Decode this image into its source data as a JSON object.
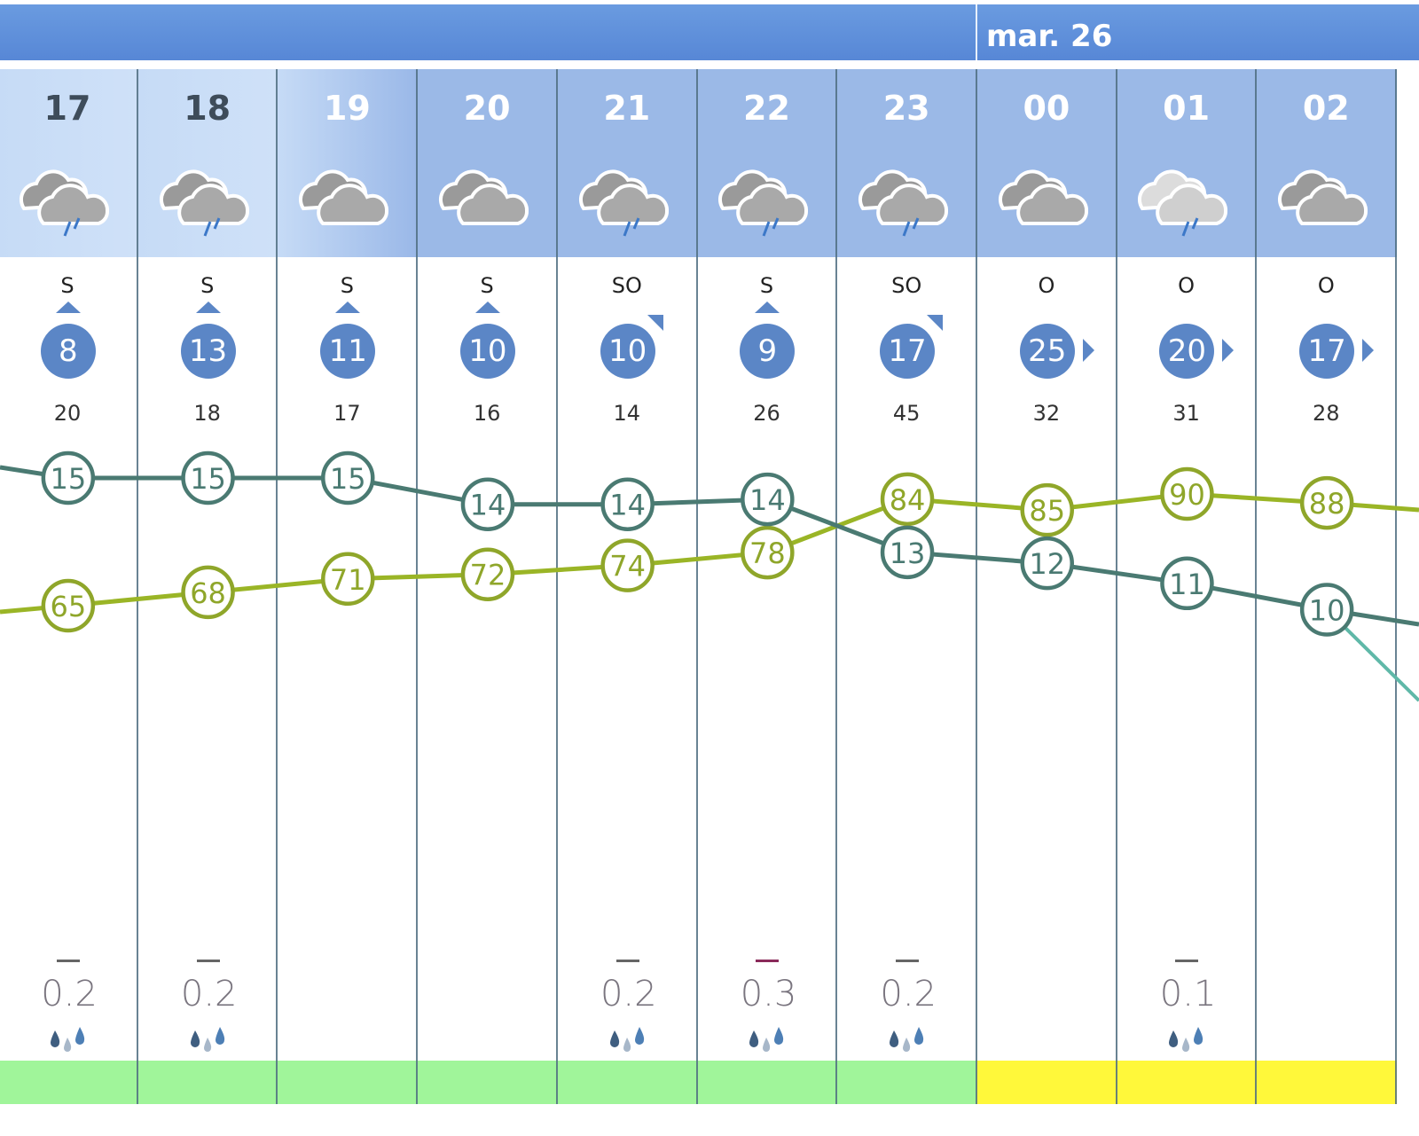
{
  "day_header": {
    "label": "mar. 26"
  },
  "colors": {
    "bar": "#5b8fd8",
    "wind_circle": "#5b86c6",
    "temp_line": "#4a7a72",
    "humidity_line": "#9ab526",
    "band_green": "#a0f59a",
    "band_yellow": "#fff83a"
  },
  "hours": [
    {
      "hour": "17",
      "icon": "storm-cloud-icon",
      "dir": "S",
      "arrow": "up",
      "wind": "8",
      "gust": "20",
      "temp": 15,
      "hum": 65,
      "precip": "0.2",
      "band": "green"
    },
    {
      "hour": "18",
      "icon": "storm-cloud-icon",
      "dir": "S",
      "arrow": "up",
      "wind": "13",
      "gust": "18",
      "temp": 15,
      "hum": 68,
      "precip": "0.2",
      "band": "green"
    },
    {
      "hour": "19",
      "icon": "cloudy-icon",
      "dir": "S",
      "arrow": "up",
      "wind": "11",
      "gust": "17",
      "temp": 15,
      "hum": 71,
      "precip": "",
      "band": "green"
    },
    {
      "hour": "20",
      "icon": "cloudy-icon",
      "dir": "S",
      "arrow": "up",
      "wind": "10",
      "gust": "16",
      "temp": 14,
      "hum": 72,
      "precip": "",
      "band": "green"
    },
    {
      "hour": "21",
      "icon": "storm-cloud-icon",
      "dir": "SO",
      "arrow": "corner",
      "wind": "10",
      "gust": "14",
      "temp": 14,
      "hum": 74,
      "precip": "0.2",
      "band": "green"
    },
    {
      "hour": "22",
      "icon": "storm-cloud-icon",
      "dir": "S",
      "arrow": "up",
      "wind": "9",
      "gust": "26",
      "temp": 14,
      "hum": 78,
      "precip": "0.3",
      "band": "green"
    },
    {
      "hour": "23",
      "icon": "storm-cloud-icon",
      "dir": "SO",
      "arrow": "corner",
      "wind": "17",
      "gust": "45",
      "temp": 13,
      "hum": 84,
      "precip": "0.2",
      "band": "green"
    },
    {
      "hour": "00",
      "icon": "cloudy-icon",
      "dir": "O",
      "arrow": "right",
      "wind": "25",
      "gust": "32",
      "temp": 12,
      "hum": 85,
      "precip": "",
      "band": "yellow"
    },
    {
      "hour": "01",
      "icon": "storm-cloud-light-icon",
      "dir": "O",
      "arrow": "right",
      "wind": "20",
      "gust": "31",
      "temp": 11,
      "hum": 90,
      "precip": "0.1",
      "band": "yellow"
    },
    {
      "hour": "02",
      "icon": "cloudy-icon",
      "dir": "O",
      "arrow": "right",
      "wind": "17",
      "gust": "28",
      "temp": 10,
      "hum": 88,
      "precip": "",
      "band": "yellow"
    }
  ]
}
